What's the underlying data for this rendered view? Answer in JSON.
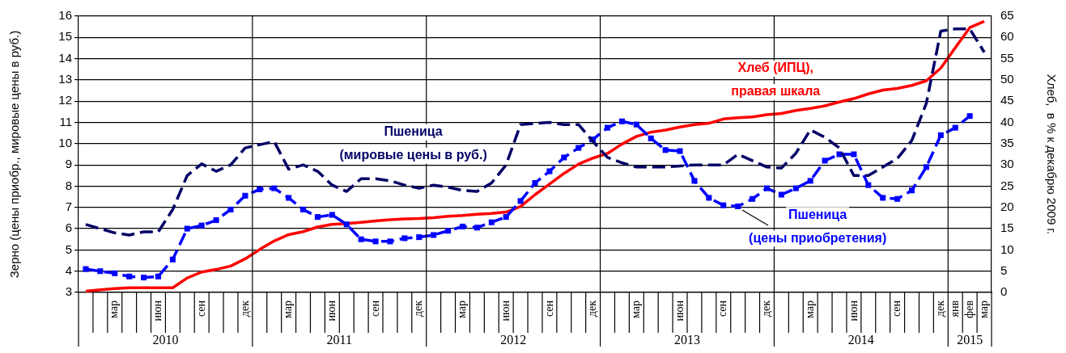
{
  "chart_data": {
    "type": "line",
    "categories": [
      null,
      null,
      "мар",
      null,
      null,
      "июн",
      null,
      null,
      "сен",
      null,
      null,
      "дек",
      null,
      null,
      "мар",
      null,
      null,
      "июн",
      null,
      null,
      "сен",
      null,
      null,
      "дек",
      null,
      null,
      "мар",
      null,
      null,
      "июн",
      null,
      null,
      "сен",
      null,
      null,
      "дек",
      null,
      null,
      "мар",
      null,
      null,
      "июн",
      null,
      null,
      "сен",
      null,
      null,
      "дек",
      null,
      null,
      "мар",
      null,
      null,
      "июн",
      null,
      null,
      "сен",
      null,
      null,
      "дек",
      "янв",
      "фев",
      "мар"
    ],
    "ylabel": "Зерно (цены приобр., мировые цены в руб.)",
    "y2label": "Хлеб,  в % к декабрю 2009 г.",
    "ylim": [
      3,
      16
    ],
    "yticks": [
      3,
      4,
      5,
      6,
      7,
      8,
      9,
      10,
      11,
      12,
      13,
      14,
      15,
      16
    ],
    "y2lim": [
      0,
      65
    ],
    "y2ticks": [
      0,
      5,
      10,
      15,
      20,
      25,
      30,
      35,
      40,
      45,
      50,
      55,
      60,
      65
    ],
    "grid": true,
    "annotations": [
      "2010",
      "2011",
      "2012",
      "2013",
      "2014",
      "2015"
    ],
    "series": [
      {
        "name": "Пшеница\n(мировые цены в руб.)",
        "color": "#000066",
        "line_style": "dashed",
        "marker": "none",
        "axis": "y",
        "values": [
          6.2,
          6.0,
          5.8,
          5.7,
          5.85,
          5.85,
          6.9,
          8.5,
          9.05,
          8.7,
          9.0,
          9.8,
          9.95,
          10.1,
          8.8,
          9.0,
          8.7,
          8.05,
          7.75,
          8.35,
          8.35,
          8.25,
          8.05,
          7.9,
          8.05,
          7.95,
          7.8,
          7.75,
          8.15,
          9.0,
          10.9,
          10.95,
          11.0,
          10.9,
          10.9,
          10.1,
          9.35,
          9.1,
          8.9,
          8.9,
          8.9,
          8.95,
          9.0,
          9.0,
          9.0,
          9.5,
          9.2,
          8.9,
          8.85,
          9.55,
          10.65,
          10.3,
          9.8,
          8.5,
          8.5,
          8.9,
          9.3,
          10.15,
          11.9,
          15.3,
          15.4,
          15.4,
          14.3
        ]
      },
      {
        "name": "Пшеница\n(цены приобретения)",
        "color": "#0000ff",
        "line_style": "dashed",
        "marker": "square",
        "axis": "y",
        "values": [
          4.1,
          4.0,
          3.9,
          3.75,
          3.7,
          3.75,
          4.55,
          6.0,
          6.15,
          6.4,
          6.9,
          7.55,
          7.85,
          7.9,
          7.45,
          6.9,
          6.55,
          6.65,
          6.2,
          5.5,
          5.4,
          5.4,
          5.55,
          5.6,
          5.7,
          5.9,
          6.1,
          6.05,
          6.3,
          6.55,
          7.3,
          8.15,
          8.7,
          9.35,
          9.8,
          10.2,
          10.75,
          11.05,
          10.9,
          10.25,
          9.7,
          9.65,
          8.25,
          7.45,
          7.1,
          7.05,
          7.4,
          7.9,
          7.6,
          7.9,
          8.25,
          9.2,
          9.5,
          9.5,
          8.05,
          7.45,
          7.4,
          7.8,
          8.9,
          10.4,
          10.75,
          11.3,
          null
        ]
      },
      {
        "name": "Хлеб (ИПЦ),\nправая шкала",
        "color": "#ff0000",
        "line_style": "solid",
        "marker": "none",
        "axis": "y2",
        "values": [
          0.3,
          0.6,
          0.9,
          1.1,
          1.1,
          1.1,
          1.1,
          3.4,
          4.8,
          5.4,
          6.2,
          7.9,
          10.1,
          12.1,
          13.6,
          14.3,
          15.4,
          16.0,
          16.2,
          16.5,
          16.8,
          17.1,
          17.3,
          17.4,
          17.6,
          17.9,
          18.1,
          18.4,
          18.6,
          18.9,
          20.2,
          23.0,
          25.5,
          28.0,
          30.2,
          31.6,
          32.7,
          34.9,
          36.7,
          37.7,
          38.2,
          38.9,
          39.5,
          39.8,
          40.8,
          41.1,
          41.3,
          41.8,
          42.1,
          42.8,
          43.3,
          43.9,
          44.8,
          45.6,
          46.7,
          47.6,
          48.0,
          48.7,
          49.8,
          52.8,
          57.6,
          62.3,
          63.8
        ]
      }
    ]
  }
}
